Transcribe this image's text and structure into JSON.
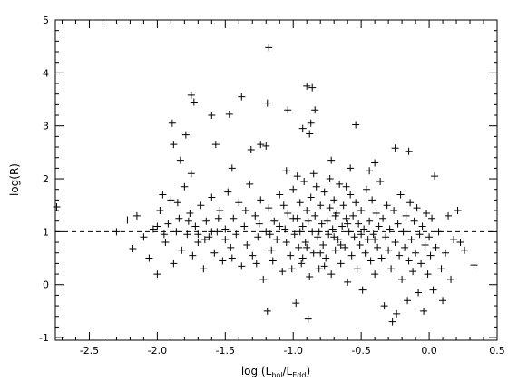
{
  "chart_data": {
    "type": "scatter",
    "marker": "plus",
    "title": "",
    "xlabel": "log (L_bol/L_Edd)",
    "xlabel_parts": {
      "prefix": "log (L",
      "sub1": "bol",
      "mid": "/L",
      "sub2": "Edd",
      "suffix": ")"
    },
    "ylabel": "log(R)",
    "xlim": [
      -2.75,
      0.5
    ],
    "ylim": [
      -1.05,
      5.0
    ],
    "x_ticks": [
      -2.5,
      -2.0,
      -1.5,
      -1.0,
      -0.5,
      0.0,
      0.5
    ],
    "x_tick_labels": [
      "-2.5",
      "-2.0",
      "-1.5",
      "-1.0",
      "-0.5",
      "0.0",
      "0.5"
    ],
    "y_ticks": [
      -1,
      0,
      1,
      2,
      3,
      4,
      5
    ],
    "y_tick_labels": [
      "-1",
      "0",
      "1",
      "2",
      "3",
      "4",
      "5"
    ],
    "grid": false,
    "reference_line": {
      "y": 1.0,
      "style": "dashed"
    },
    "series": [
      {
        "points": [
          [
            -1.18,
            4.48
          ],
          [
            -0.9,
            3.75
          ],
          [
            -0.86,
            3.72
          ],
          [
            -1.75,
            3.58
          ],
          [
            -1.73,
            3.45
          ],
          [
            -1.38,
            3.55
          ],
          [
            -1.19,
            3.43
          ],
          [
            -1.89,
            3.05
          ],
          [
            -1.6,
            3.2
          ],
          [
            -1.47,
            3.22
          ],
          [
            -1.04,
            3.3
          ],
          [
            -0.84,
            3.3
          ],
          [
            -0.87,
            3.05
          ],
          [
            -0.54,
            3.02
          ],
          [
            -0.93,
            2.95
          ],
          [
            -0.88,
            2.85
          ],
          [
            -1.79,
            2.83
          ],
          [
            -1.88,
            2.65
          ],
          [
            -1.57,
            2.65
          ],
          [
            -1.24,
            2.65
          ],
          [
            -1.2,
            2.62
          ],
          [
            -0.25,
            2.58
          ],
          [
            -0.15,
            2.52
          ],
          [
            -1.31,
            2.55
          ],
          [
            -1.83,
            2.35
          ],
          [
            -0.4,
            2.3
          ],
          [
            -1.75,
            2.1
          ],
          [
            -1.45,
            2.2
          ],
          [
            -1.05,
            2.15
          ],
          [
            -0.72,
            2.35
          ],
          [
            -0.58,
            2.2
          ],
          [
            -0.44,
            2.15
          ],
          [
            -2.74,
            1.47
          ],
          [
            -2.3,
            1.0
          ],
          [
            -2.22,
            1.22
          ],
          [
            -2.18,
            0.68
          ],
          [
            -2.15,
            1.3
          ],
          [
            -2.1,
            0.9
          ],
          [
            -2.06,
            0.5
          ],
          [
            -2.03,
            1.05
          ],
          [
            -2.0,
            0.2
          ],
          [
            -1.98,
            1.4
          ],
          [
            -1.96,
            1.7
          ],
          [
            -1.94,
            0.8
          ],
          [
            -1.92,
            1.15
          ],
          [
            -1.9,
            1.6
          ],
          [
            -1.88,
            0.4
          ],
          [
            -1.86,
            1.0
          ],
          [
            -1.84,
            1.25
          ],
          [
            -1.82,
            0.65
          ],
          [
            -1.8,
            1.85
          ],
          [
            -1.78,
            0.95
          ],
          [
            -1.76,
            1.35
          ],
          [
            -1.74,
            0.55
          ],
          [
            -1.72,
            1.1
          ],
          [
            -1.7,
            0.8
          ],
          [
            -1.68,
            1.5
          ],
          [
            -1.66,
            0.3
          ],
          [
            -1.64,
            1.2
          ],
          [
            -1.62,
            0.9
          ],
          [
            -1.6,
            1.65
          ],
          [
            -1.58,
            0.6
          ],
          [
            -1.56,
            1.0
          ],
          [
            -1.54,
            1.4
          ],
          [
            -1.52,
            0.45
          ],
          [
            -1.5,
            1.05
          ],
          [
            -1.48,
            1.75
          ],
          [
            -1.46,
            0.7
          ],
          [
            -1.44,
            1.25
          ],
          [
            -1.42,
            0.95
          ],
          [
            -1.4,
            1.55
          ],
          [
            -1.38,
            0.35
          ],
          [
            -1.36,
            1.1
          ],
          [
            -1.34,
            0.75
          ],
          [
            -1.32,
            1.9
          ],
          [
            -1.3,
            0.55
          ],
          [
            -1.28,
            1.3
          ],
          [
            -1.26,
            0.9
          ],
          [
            -1.24,
            1.6
          ],
          [
            -1.22,
            0.1
          ],
          [
            -1.2,
            1.0
          ],
          [
            -1.19,
            -0.5
          ],
          [
            -1.18,
            1.45
          ],
          [
            -1.16,
            0.65
          ],
          [
            -1.14,
            1.2
          ],
          [
            -1.12,
            0.85
          ],
          [
            -1.1,
            1.7
          ],
          [
            -1.08,
            0.25
          ],
          [
            -1.06,
            1.05
          ],
          [
            -1.04,
            1.35
          ],
          [
            -1.02,
            0.55
          ],
          [
            -1.0,
            1.8
          ],
          [
            -0.99,
            0.95
          ],
          [
            -0.98,
            -0.35
          ],
          [
            -0.97,
            1.25
          ],
          [
            -0.96,
            0.7
          ],
          [
            -0.95,
            1.55
          ],
          [
            -0.94,
            0.4
          ],
          [
            -0.93,
            1.1
          ],
          [
            -0.92,
            1.95
          ],
          [
            -0.91,
            0.8
          ],
          [
            -0.9,
            1.4
          ],
          [
            -0.89,
            -0.65
          ],
          [
            -0.88,
            0.15
          ],
          [
            -0.87,
            1.65
          ],
          [
            -0.86,
            1.0
          ],
          [
            -0.85,
            0.6
          ],
          [
            -0.84,
            1.3
          ],
          [
            -0.83,
            1.85
          ],
          [
            -0.82,
            0.9
          ],
          [
            -0.81,
            0.3
          ],
          [
            -0.8,
            1.5
          ],
          [
            -0.79,
            1.15
          ],
          [
            -0.78,
            0.75
          ],
          [
            -0.77,
            1.75
          ],
          [
            -0.76,
            0.5
          ],
          [
            -0.75,
            1.2
          ],
          [
            -0.74,
            0.95
          ],
          [
            -0.73,
            1.45
          ],
          [
            -0.72,
            0.2
          ],
          [
            -0.71,
            1.05
          ],
          [
            -0.7,
            1.6
          ],
          [
            -0.69,
            0.65
          ],
          [
            -0.68,
            1.35
          ],
          [
            -0.67,
            0.85
          ],
          [
            -0.66,
            1.9
          ],
          [
            -0.65,
            0.4
          ],
          [
            -0.64,
            1.1
          ],
          [
            -0.63,
            1.5
          ],
          [
            -0.62,
            0.7
          ],
          [
            -0.61,
            1.25
          ],
          [
            -0.6,
            0.05
          ],
          [
            -0.59,
            1.0
          ],
          [
            -0.58,
            1.7
          ],
          [
            -0.57,
            0.55
          ],
          [
            -0.56,
            1.3
          ],
          [
            -0.55,
            0.9
          ],
          [
            -0.54,
            1.55
          ],
          [
            -0.53,
            0.3
          ],
          [
            -0.52,
            1.15
          ],
          [
            -0.51,
            0.75
          ],
          [
            -0.5,
            1.4
          ],
          [
            -0.49,
            -0.1
          ],
          [
            -0.48,
            1.05
          ],
          [
            -0.47,
            0.6
          ],
          [
            -0.46,
            1.8
          ],
          [
            -0.45,
            0.85
          ],
          [
            -0.44,
            1.2
          ],
          [
            -0.43,
            0.45
          ],
          [
            -0.42,
            1.6
          ],
          [
            -0.41,
            0.95
          ],
          [
            -0.4,
            0.2
          ],
          [
            -0.39,
            1.35
          ],
          [
            -0.38,
            0.7
          ],
          [
            -0.37,
            1.1
          ],
          [
            -0.36,
            1.95
          ],
          [
            -0.35,
            0.5
          ],
          [
            -0.34,
            1.25
          ],
          [
            -0.33,
            -0.4
          ],
          [
            -0.32,
            0.9
          ],
          [
            -0.31,
            1.5
          ],
          [
            -0.3,
            0.65
          ],
          [
            -0.29,
            1.05
          ],
          [
            -0.28,
            0.3
          ],
          [
            -0.27,
            -0.7
          ],
          [
            -0.26,
            1.4
          ],
          [
            -0.25,
            0.8
          ],
          [
            -0.24,
            -0.55
          ],
          [
            -0.23,
            1.15
          ],
          [
            -0.22,
            0.55
          ],
          [
            -0.21,
            1.7
          ],
          [
            -0.2,
            0.1
          ],
          [
            -0.19,
            1.0
          ],
          [
            -0.18,
            0.7
          ],
          [
            -0.17,
            1.3
          ],
          [
            -0.16,
            -0.3
          ],
          [
            -0.15,
            0.45
          ],
          [
            -0.14,
            1.55
          ],
          [
            -0.13,
            0.85
          ],
          [
            -0.12,
            0.25
          ],
          [
            -0.11,
            1.2
          ],
          [
            -0.1,
            0.6
          ],
          [
            -0.09,
            1.45
          ],
          [
            -0.08,
            -0.15
          ],
          [
            -0.07,
            0.95
          ],
          [
            -0.06,
            0.4
          ],
          [
            -0.05,
            1.1
          ],
          [
            -0.04,
            -0.5
          ],
          [
            -0.03,
            0.75
          ],
          [
            -0.02,
            1.35
          ],
          [
            -0.01,
            0.2
          ],
          [
            0.0,
            0.9
          ],
          [
            0.01,
            0.55
          ],
          [
            0.02,
            1.25
          ],
          [
            0.03,
            -0.1
          ],
          [
            0.04,
            2.05
          ],
          [
            0.05,
            0.7
          ],
          [
            0.07,
            1.0
          ],
          [
            0.09,
            0.3
          ],
          [
            0.1,
            -0.3
          ],
          [
            0.12,
            0.6
          ],
          [
            0.14,
            1.3
          ],
          [
            0.16,
            0.1
          ],
          [
            0.18,
            0.85
          ],
          [
            0.21,
            1.4
          ],
          [
            0.23,
            0.8
          ],
          [
            0.26,
            0.65
          ],
          [
            0.33,
            0.37
          ],
          [
            -2.0,
            1.1
          ],
          [
            -1.95,
            0.95
          ],
          [
            -1.85,
            1.55
          ],
          [
            -1.77,
            1.2
          ],
          [
            -1.65,
            0.85
          ],
          [
            -1.55,
            1.25
          ],
          [
            -1.45,
            0.5
          ],
          [
            -1.35,
            1.4
          ],
          [
            -1.27,
            0.4
          ],
          [
            -1.17,
            0.95
          ],
          [
            -1.07,
            1.5
          ],
          [
            -1.01,
            0.3
          ],
          [
            -0.97,
            2.05
          ],
          [
            -0.93,
            0.5
          ],
          [
            -0.89,
            1.2
          ],
          [
            -0.85,
            2.1
          ],
          [
            -0.81,
            1.0
          ],
          [
            -0.77,
            0.35
          ],
          [
            -0.73,
            2.0
          ],
          [
            -0.69,
            1.3
          ],
          [
            -0.65,
            0.75
          ],
          [
            -0.61,
            1.85
          ],
          [
            -1.25,
            1.15
          ],
          [
            -1.15,
            0.45
          ],
          [
            -1.05,
            0.8
          ],
          [
            -0.95,
            1.0
          ],
          [
            -0.8,
            0.6
          ],
          [
            -0.7,
            0.9
          ],
          [
            -0.6,
            1.15
          ],
          [
            -0.5,
            0.95
          ],
          [
            -0.4,
            0.85
          ],
          [
            -1.5,
            0.85
          ],
          [
            -1.6,
            1.0
          ],
          [
            -1.7,
            0.95
          ],
          [
            -1.1,
            1.1
          ],
          [
            -1.0,
            1.25
          ],
          [
            -0.9,
            0.7
          ]
        ]
      }
    ]
  }
}
